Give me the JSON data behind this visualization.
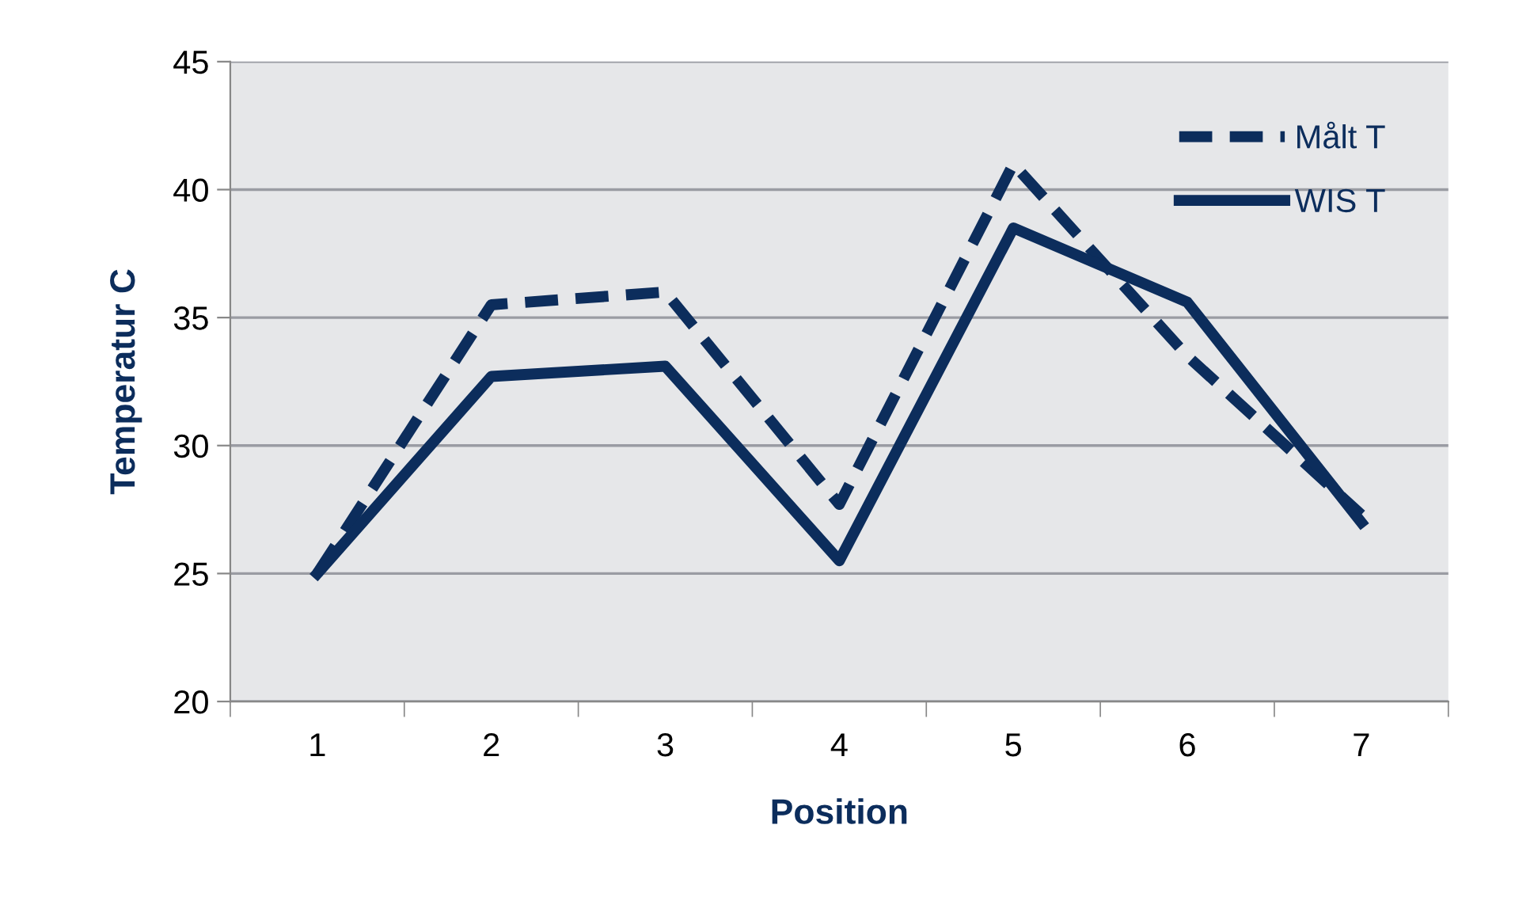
{
  "chart_data": {
    "type": "line",
    "xlabel": "Position",
    "ylabel": "Temperatur C",
    "categories": [
      "1",
      "2",
      "3",
      "4",
      "5",
      "6",
      "7"
    ],
    "series": [
      {
        "name": "Målt T",
        "color": "#0c2d5c",
        "line_style": "dashed",
        "values": [
          25.0,
          35.5,
          36.0,
          27.7,
          41.0,
          33.5,
          27.3
        ]
      },
      {
        "name": "WIS T",
        "color": "#0c2d5c",
        "line_style": "solid",
        "values": [
          25.0,
          32.7,
          33.1,
          25.5,
          38.5,
          35.6,
          27.0
        ]
      }
    ],
    "ylim": [
      20,
      45
    ],
    "yticks": [
      20,
      25,
      30,
      35,
      40,
      45
    ],
    "grid": "y",
    "legend": "top right",
    "marker": "none"
  }
}
